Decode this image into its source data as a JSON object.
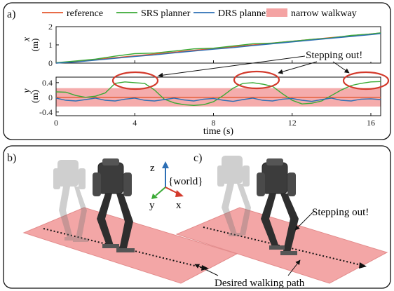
{
  "figure": {
    "panel_a_label": "a)",
    "panel_b_label": "b)",
    "panel_c_label": "c)",
    "annotation_stepping_out": "Stepping out!",
    "annotation_desired_path": "Desired walking path",
    "frame_label": "{world}",
    "axis_z": "z",
    "axis_y": "y",
    "axis_x": "x"
  },
  "legend": {
    "items": [
      {
        "label": "reference",
        "color": "#e4572e",
        "kind": "line"
      },
      {
        "label": "SRS planner",
        "color": "#3aaa35",
        "kind": "line"
      },
      {
        "label": "DRS planner",
        "color": "#2d6fb5",
        "kind": "line"
      },
      {
        "label": "narrow walkway",
        "color": "#f4a3a3",
        "kind": "patch"
      }
    ]
  },
  "chart_data": [
    {
      "type": "line",
      "ylabel_var": "x",
      "ylabel_unit": "(m)",
      "xlim": [
        0,
        16.5
      ],
      "ylim": [
        0,
        2
      ],
      "yticks": [
        0,
        1,
        2
      ],
      "xticks": [
        0,
        4,
        8,
        12,
        16
      ],
      "series": [
        {
          "name": "reference",
          "color": "#e4572e",
          "x": [
            0,
            16.5
          ],
          "y": [
            0,
            1.65
          ]
        },
        {
          "name": "SRS planner",
          "color": "#3aaa35",
          "x": [
            0,
            1,
            2,
            3,
            4,
            5,
            6,
            7,
            8,
            9,
            10,
            11,
            12,
            13,
            14,
            15,
            16,
            16.5
          ],
          "y": [
            0.02,
            0.12,
            0.22,
            0.38,
            0.52,
            0.55,
            0.66,
            0.78,
            0.82,
            0.94,
            1.06,
            1.1,
            1.2,
            1.3,
            1.38,
            1.52,
            1.6,
            1.66
          ]
        },
        {
          "name": "DRS planner",
          "color": "#2d6fb5",
          "x": [
            0,
            1,
            2,
            3,
            4,
            5,
            6,
            7,
            8,
            9,
            10,
            11,
            12,
            13,
            14,
            15,
            16,
            16.5
          ],
          "y": [
            0.0,
            0.06,
            0.16,
            0.26,
            0.36,
            0.45,
            0.56,
            0.66,
            0.76,
            0.85,
            0.96,
            1.06,
            1.16,
            1.26,
            1.36,
            1.46,
            1.56,
            1.62
          ]
        }
      ]
    },
    {
      "type": "line",
      "ylabel_var": "y",
      "ylabel_unit": "(m)",
      "xlabel": "time (s)",
      "xlim": [
        0,
        16.5
      ],
      "ylim": [
        -0.5,
        0.55
      ],
      "yticks": [
        -0.4,
        0,
        0.4
      ],
      "xticks": [
        0,
        4,
        8,
        12,
        16
      ],
      "band": {
        "name": "narrow walkway",
        "y0": -0.25,
        "y1": 0.25,
        "color": "#f4a3a3"
      },
      "series": [
        {
          "name": "reference",
          "color": "#e4572e",
          "x": [
            0,
            16.5
          ],
          "y": [
            0,
            0
          ]
        },
        {
          "name": "SRS planner",
          "color": "#3aaa35",
          "x": [
            0,
            0.5,
            1,
            1.5,
            2,
            2.5,
            3,
            3.5,
            4,
            4.5,
            5,
            5.5,
            6,
            6.5,
            7,
            7.5,
            8,
            8.5,
            9,
            9.5,
            10,
            10.5,
            11,
            11.5,
            12,
            12.5,
            13,
            13.5,
            14,
            14.5,
            15,
            15.5,
            16,
            16.5
          ],
          "y": [
            0.15,
            0.14,
            0.05,
            0.0,
            0.03,
            0.12,
            0.38,
            0.42,
            0.4,
            0.38,
            0.2,
            -0.05,
            -0.15,
            -0.2,
            -0.22,
            -0.2,
            -0.12,
            0.05,
            0.25,
            0.38,
            0.4,
            0.36,
            0.3,
            0.1,
            -0.08,
            -0.18,
            -0.16,
            -0.1,
            0.05,
            0.2,
            0.32,
            0.38,
            0.42,
            0.43
          ]
        },
        {
          "name": "DRS planner",
          "color": "#2d6fb5",
          "x": [
            0,
            0.5,
            1,
            1.5,
            2,
            2.5,
            3,
            3.5,
            4,
            4.5,
            5,
            5.5,
            6,
            6.5,
            7,
            7.5,
            8,
            8.5,
            9,
            9.5,
            10,
            10.5,
            11,
            11.5,
            12,
            12.5,
            13,
            13.5,
            14,
            14.5,
            15,
            15.5,
            16,
            16.5
          ],
          "y": [
            -0.02,
            -0.08,
            -0.1,
            -0.06,
            -0.02,
            -0.08,
            -0.1,
            -0.05,
            -0.02,
            -0.08,
            -0.1,
            -0.06,
            -0.02,
            -0.07,
            -0.1,
            -0.05,
            -0.03,
            -0.08,
            -0.11,
            -0.06,
            -0.02,
            -0.08,
            -0.1,
            -0.05,
            -0.03,
            -0.08,
            -0.11,
            -0.06,
            -0.02,
            -0.08,
            -0.1,
            -0.05,
            -0.04,
            -0.06
          ]
        }
      ]
    }
  ]
}
